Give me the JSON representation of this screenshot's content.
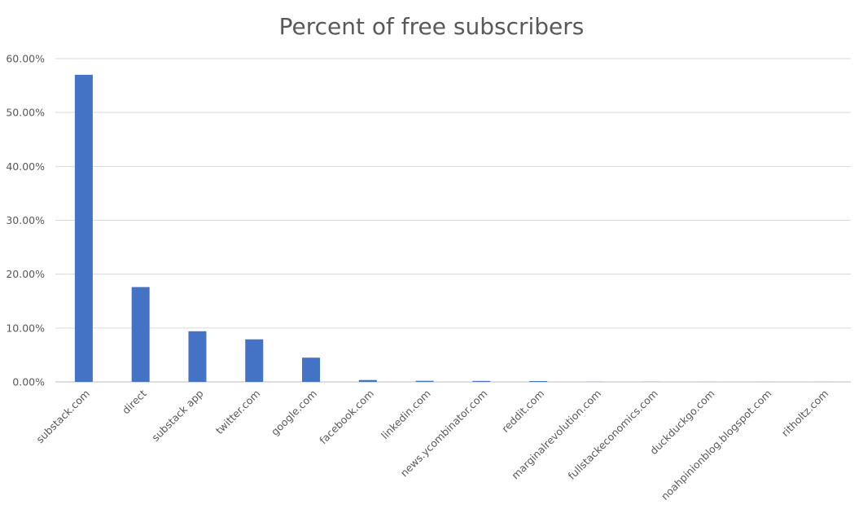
{
  "chart_data": {
    "type": "bar",
    "title": "Percent of free subscribers",
    "xlabel": "",
    "ylabel": "",
    "categories": [
      "substack.com",
      "direct",
      "substack app",
      "twitter.com",
      "google.com",
      "facebook.com",
      "linkedin.com",
      "news.ycombinator.com",
      "reddit.com",
      "marginalrevolution.com",
      "fullstackeconomics.com",
      "duckduckgo.com",
      "noahpinionblog.blogspot.com",
      "ritholtz.com"
    ],
    "values": [
      57.0,
      17.6,
      9.4,
      7.9,
      4.5,
      0.35,
      0.2,
      0.18,
      0.15,
      0.02,
      0.02,
      0.01,
      0.01,
      0.01
    ],
    "value_unit": "percent",
    "ylim": [
      0,
      60
    ],
    "y_ticks": [
      "0.00%",
      "10.00%",
      "20.00%",
      "30.00%",
      "40.00%",
      "50.00%",
      "60.00%"
    ],
    "y_tick_values": [
      0,
      10,
      20,
      30,
      40,
      50,
      60
    ],
    "grid": true,
    "legend": "none",
    "bar_color": "#4472c4"
  }
}
